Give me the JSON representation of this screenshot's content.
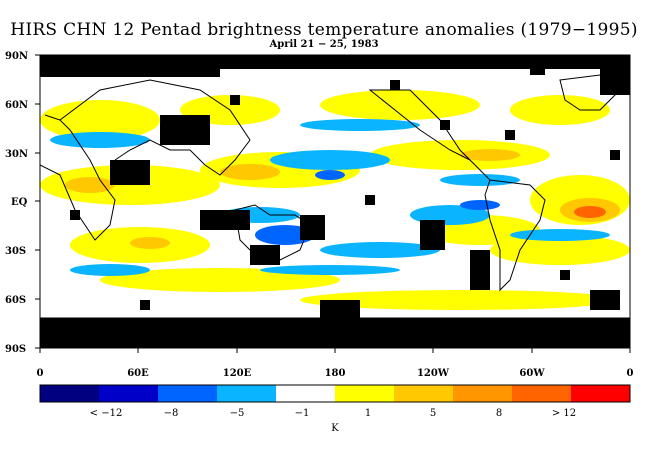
{
  "title": "HIRS CHN 12 Pentad brightness temperature anomalies (1979−1995)",
  "subtitle": "April 21 − 25, 1983",
  "lat_labels": [
    "90N",
    "60N",
    "30N",
    "EQ",
    "30S",
    "60S",
    "90S"
  ],
  "lon_labels": [
    "0",
    "60E",
    "120E",
    "180",
    "120W",
    "60W",
    "0"
  ],
  "colorbar": {
    "unit": "K",
    "colors": [
      "#000080",
      "#0000c8",
      "#0064ff",
      "#0ab4ff",
      "#ffffff",
      "#ffff00",
      "#ffc800",
      "#ff9600",
      "#ff6400",
      "#ff0000"
    ],
    "tick_labels": [
      "< −12",
      "−8",
      "−5",
      "−1",
      "1",
      "5",
      "8",
      "> 12"
    ]
  },
  "colors": {
    "no_data": "#000000",
    "coastline": "#000000"
  }
}
